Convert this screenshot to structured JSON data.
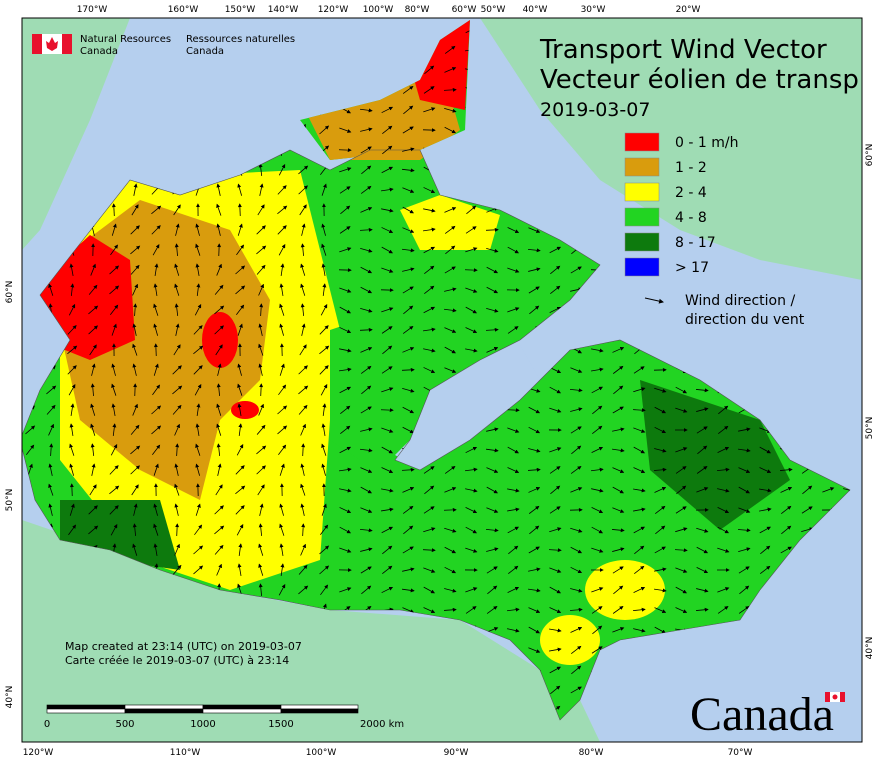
{
  "header": {
    "agency_en": [
      "Natural Resources",
      "Canada"
    ],
    "agency_fr": [
      "Ressources naturelles",
      "Canada"
    ],
    "title": [
      "Transport Wind Vector",
      "Vecteur éolien de transp"
    ],
    "date": "2019-03-07"
  },
  "legend": {
    "items": [
      {
        "label": "0 - 1 m/h",
        "color": "#ff0000"
      },
      {
        "label": "1 - 2",
        "color": "#d99c0d"
      },
      {
        "label": "2 - 4",
        "color": "#ffff00"
      },
      {
        "label": "4 - 8",
        "color": "#22d422"
      },
      {
        "label": "8 - 17",
        "color": "#0d7a0d"
      },
      {
        "label": "> 17",
        "color": "#0000ff"
      }
    ],
    "arrow_label": [
      "Wind direction /",
      "direction du vent"
    ]
  },
  "axes": {
    "top": [
      "170°W",
      "160°W",
      "150°W",
      "140°W",
      "120°W",
      "100°W",
      "80°W",
      "60°W",
      "50°W",
      "40°W",
      "30°W",
      "20°W"
    ],
    "bottom": [
      "120°W",
      "110°W",
      "100°W",
      "90°W",
      "80°W",
      "70°W"
    ],
    "left": [
      "60°N",
      "50°N",
      "40°N"
    ],
    "right": [
      "60°N",
      "50°N",
      "40°N"
    ]
  },
  "credits": [
    "Map created at 23:14 (UTC) on 2019-03-07",
    "Carte créée le 2019-03-07 (UTC) à 23:14"
  ],
  "scale_bar": {
    "labels": [
      "0",
      "500",
      "1000",
      "1500",
      "2000 km"
    ]
  },
  "wordmark": "Canada"
}
